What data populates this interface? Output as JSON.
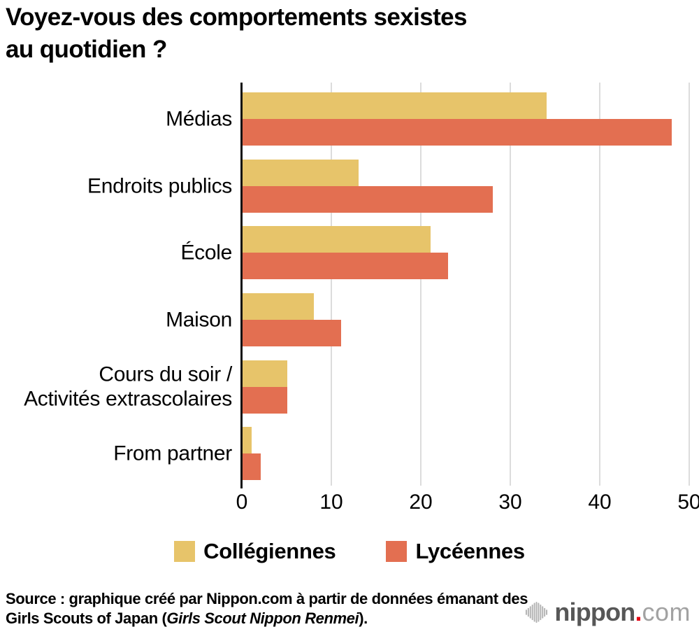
{
  "title": "Voyez-vous des comportements sexistes\nau quotidien ?",
  "chart_data": {
    "type": "bar",
    "orientation": "horizontal",
    "title": "Voyez-vous des comportements sexistes au quotidien ?",
    "categories": [
      "Médias",
      "Endroits publics",
      "École",
      "Maison",
      "Cours du soir /\nActivités extrascolaires",
      "From partner"
    ],
    "series": [
      {
        "name": "Collégiennes",
        "color": "#e7c46a",
        "values": [
          34,
          13,
          21,
          8,
          5,
          1
        ]
      },
      {
        "name": "Lycéennes",
        "color": "#e36f51",
        "values": [
          48,
          28,
          23,
          11,
          5,
          2
        ]
      }
    ],
    "xlim": [
      0,
      50
    ],
    "xticks": [
      0,
      10,
      20,
      30,
      40,
      50
    ],
    "grid": true,
    "gridline_color": "#dcdcdc",
    "axis_color": "#111111",
    "legend_position": "bottom"
  },
  "source": {
    "text_before": "Source : graphique créé par Nippon.com à partir de données émanant des Girls Scouts of Japan (",
    "italic_text": "Girls Scout Nippon Renmei",
    "text_after": ")."
  },
  "logo": {
    "name_bold": "nippon",
    "dot": ".",
    "name_light": "com",
    "dot_color": "#e60012",
    "icon_color": "#b2b2b2"
  }
}
